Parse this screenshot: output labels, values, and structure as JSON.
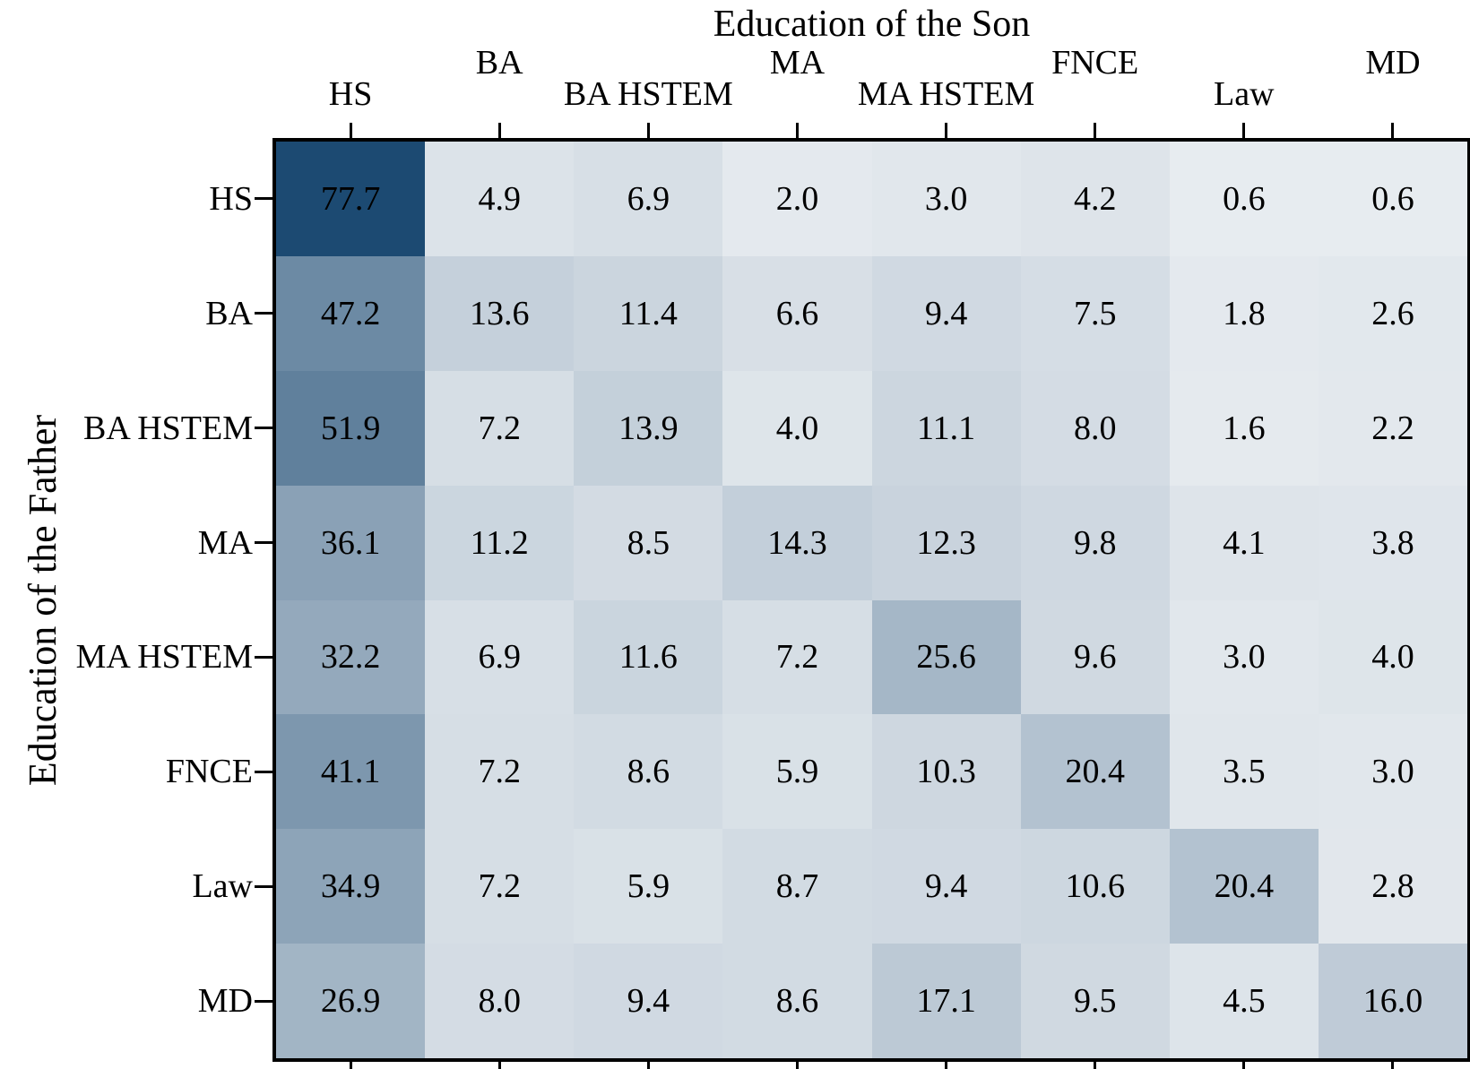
{
  "figure": {
    "top_axis_title": "Education of the Son",
    "left_axis_title": "Education of the Father"
  },
  "chart_data": {
    "type": "heatmap",
    "title": "Education of the Son",
    "xlabel": "Education of the Son",
    "ylabel": "Education of the Father",
    "x_categories": [
      "HS",
      "BA",
      "BA HSTEM",
      "MA",
      "MA HSTEM",
      "FNCE",
      "Law",
      "MD"
    ],
    "y_categories": [
      "HS",
      "BA",
      "BA HSTEM",
      "MA",
      "MA HSTEM",
      "FNCE",
      "Law",
      "MD"
    ],
    "values": [
      [
        77.7,
        4.9,
        6.9,
        2.0,
        3.0,
        4.2,
        0.6,
        0.6
      ],
      [
        47.2,
        13.6,
        11.4,
        6.6,
        9.4,
        7.5,
        1.8,
        2.6
      ],
      [
        51.9,
        7.2,
        13.9,
        4.0,
        11.1,
        8.0,
        1.6,
        2.2
      ],
      [
        36.1,
        11.2,
        8.5,
        14.3,
        12.3,
        9.8,
        4.1,
        3.8
      ],
      [
        32.2,
        6.9,
        11.6,
        7.2,
        25.6,
        9.6,
        3.0,
        4.0
      ],
      [
        41.1,
        7.2,
        8.6,
        5.9,
        10.3,
        20.4,
        3.5,
        3.0
      ],
      [
        34.9,
        7.2,
        5.9,
        8.7,
        9.4,
        10.6,
        20.4,
        2.8
      ],
      [
        26.9,
        8.0,
        9.4,
        8.6,
        17.1,
        9.5,
        4.5,
        16.0
      ]
    ],
    "value_decimals": 1,
    "colormap": {
      "min_color": "#e9edf1",
      "max_color": "#1c4a72",
      "vmin": 0,
      "vmax": 77.7
    },
    "text_color": "#000000",
    "border_color": "#000000",
    "grid": false,
    "legend": "none",
    "x_tick_sides": [
      "top",
      "bottom"
    ],
    "y_tick_sides": [
      "left",
      "right"
    ],
    "x_label_layout": "staggered-two-rows"
  }
}
